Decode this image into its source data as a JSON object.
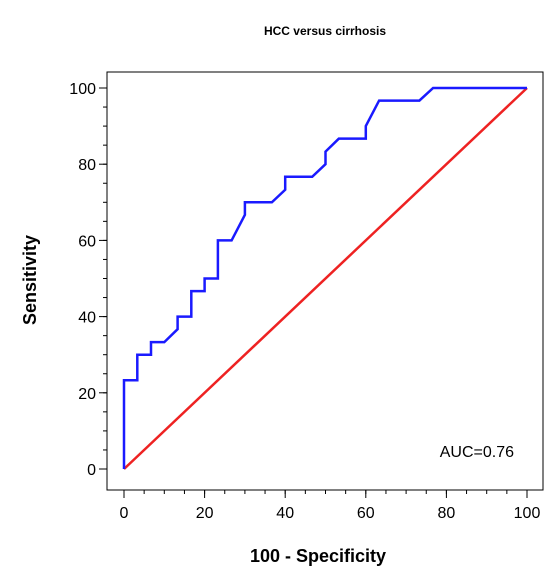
{
  "chart_data": {
    "type": "line",
    "title": "HCC versus cirrhosis",
    "xlabel": "100 - Specificity",
    "ylabel": "Sensitivity",
    "xlim": [
      0,
      100
    ],
    "ylim": [
      0,
      100
    ],
    "x_ticks": [
      "0",
      "20",
      "40",
      "60",
      "80",
      "100"
    ],
    "y_ticks": [
      "0",
      "20",
      "40",
      "60",
      "80",
      "100"
    ],
    "x_tick_values": [
      0,
      20,
      40,
      60,
      80,
      100
    ],
    "y_tick_values": [
      0,
      20,
      40,
      60,
      80,
      100
    ],
    "minor_tick_step": 5,
    "grid": false,
    "annotation": "AUC=0.76",
    "series": [
      {
        "color": "#1a1aff",
        "points": [
          [
            0,
            0
          ],
          [
            0,
            23.3
          ],
          [
            3.3,
            23.3
          ],
          [
            3.3,
            30
          ],
          [
            6.7,
            30
          ],
          [
            6.7,
            33.3
          ],
          [
            10,
            33.3
          ],
          [
            13.3,
            36.7
          ],
          [
            13.3,
            40
          ],
          [
            16.7,
            40
          ],
          [
            16.7,
            46.7
          ],
          [
            20,
            46.7
          ],
          [
            20,
            50
          ],
          [
            23.3,
            50
          ],
          [
            23.3,
            60
          ],
          [
            26.7,
            60
          ],
          [
            30,
            66.7
          ],
          [
            30,
            70
          ],
          [
            36.7,
            70
          ],
          [
            40,
            73.3
          ],
          [
            40,
            76.7
          ],
          [
            46.7,
            76.7
          ],
          [
            50,
            80
          ],
          [
            50,
            83.3
          ],
          [
            53.3,
            86.7
          ],
          [
            60,
            86.7
          ],
          [
            60,
            90
          ],
          [
            63.3,
            96.7
          ],
          [
            73.3,
            96.7
          ],
          [
            76.7,
            100
          ],
          [
            100,
            100
          ]
        ]
      },
      {
        "color": "#ee2222",
        "points": [
          [
            0,
            0
          ],
          [
            100,
            100
          ]
        ]
      }
    ]
  }
}
